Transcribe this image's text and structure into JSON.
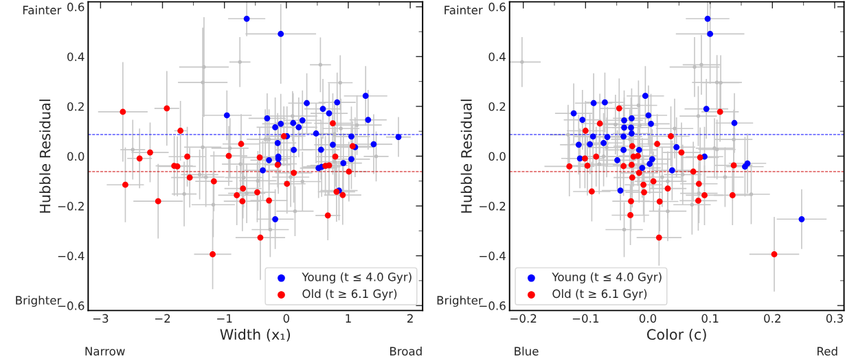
{
  "chart_data": [
    {
      "type": "scatter",
      "xlabel": "Width (x₁)",
      "ylabel": "Hubble Residual",
      "xlim": [
        -3.2,
        2.2
      ],
      "xticks": [
        {
          "value": -3,
          "label": "−3"
        },
        {
          "value": -2,
          "label": "−2"
        },
        {
          "value": -1,
          "label": "−1"
        },
        0,
        1,
        2
      ],
      "ylim": [
        -0.62,
        0.62
      ],
      "yticks": [
        {
          "value": -0.6,
          "label": "−0.6"
        },
        {
          "value": -0.4,
          "label": "−0.4"
        },
        {
          "value": -0.2,
          "label": "−0.2"
        },
        {
          "value": 0,
          "label": "0.0"
        },
        0.2,
        0.4,
        0.6
      ],
      "legend": "bottom right",
      "grid": false,
      "marker": "circle",
      "annotations": [
        "Fainter",
        "Brighter",
        "Narrow",
        "Broad"
      ],
      "ref_lines": [
        {
          "axis": "y",
          "value": 0.087,
          "label": null,
          "color": "#0000ff",
          "line_style": "dashed"
        },
        {
          "axis": "y",
          "value": -0.062,
          "label": null,
          "color": "#cc0000",
          "line_style": "dashed"
        }
      ],
      "series": [
        {
          "color": "#bebebe",
          "x": [
            -1.33,
            -1.35,
            -0.75,
            0.55,
            0.87,
            0.1,
            1.14,
            0.88,
            -2.48,
            -1.35,
            -0.91,
            -0.34,
            -0.28,
            1.45,
            0.78,
            -1.4,
            -1.3,
            -1.65,
            -1.18,
            -0.74,
            -0.69,
            -0.64,
            -0.46,
            0.07,
            0.26,
            0.14,
            -0.26,
            0.78
          ],
          "values": [
            0.358,
            0.296,
            0.378,
            0.367,
            0.295,
            0.161,
            0.125,
            0.111,
            0.026,
            0.036,
            0.032,
            0.068,
            0.068,
            -0.001,
            0.088,
            -0.074,
            -0.084,
            -0.152,
            -0.195,
            -0.032,
            -0.086,
            -0.149,
            -0.099,
            -0.084,
            -0.102,
            -0.221,
            -0.295,
            -0.022
          ],
          "xerrors": [
            0.4,
            0.4,
            0.17,
            0.17,
            0.2,
            0.4,
            0.4,
            0.3,
            0.2,
            0.3,
            0.3,
            0.3,
            0.3,
            0.2,
            0.3,
            0.3,
            0.3,
            0.2,
            0.35,
            0.3,
            0.3,
            0.3,
            0.3,
            0.3,
            0.3,
            0.3,
            0.3,
            0.3
          ],
          "errors": [
            0.2,
            0.22,
            0.1,
            0.11,
            0.11,
            0.1,
            0.12,
            0.12,
            0.12,
            0.12,
            0.12,
            0.12,
            0.12,
            0.1,
            0.12,
            0.1,
            0.12,
            0.13,
            0.13,
            0.12,
            0.12,
            0.12,
            0.12,
            0.12,
            0.12,
            0.1,
            0.11,
            0.12
          ]
        },
        {
          "name": "Young (t ≤ 4.0 Gyr)",
          "color": "#0000ff",
          "x": [
            -0.64,
            -0.09,
            -0.96,
            -0.31,
            -0.09,
            -0.18,
            0.11,
            0.2,
            0.26,
            0.33,
            0.59,
            0.69,
            0.82,
            1.28,
            1.32,
            1.81,
            0.48,
            0.01,
            -0.14,
            0.12,
            0.56,
            0.75,
            1.05,
            1.11,
            1.41,
            -0.13,
            -0.13,
            -0.28,
            1.05,
            0.92,
            -0.13,
            -0.38,
            0.52,
            0.57,
            0.85,
            -0.18
          ],
          "values": [
            0.552,
            0.491,
            0.164,
            0.152,
            0.13,
            0.116,
            0.133,
            0.116,
            0.144,
            0.213,
            0.19,
            0.172,
            0.216,
            0.242,
            0.146,
            0.077,
            0.091,
            0.08,
            0.053,
            0.025,
            0.026,
            0.046,
            0.079,
            0.036,
            0.048,
            -0.002,
            -0.01,
            -0.016,
            -0.012,
            -0.028,
            -0.031,
            -0.057,
            -0.048,
            -0.043,
            -0.138,
            -0.253
          ],
          "xerrors": [
            0.3,
            0.57,
            0.4,
            0.3,
            0.3,
            0.3,
            0.3,
            0.3,
            0.3,
            0.3,
            0.3,
            0.3,
            0.3,
            0.35,
            0.3,
            0.2,
            0.3,
            0.3,
            0.3,
            0.3,
            0.3,
            0.3,
            0.3,
            0.3,
            0.3,
            0.3,
            0.2,
            0.3,
            0.3,
            0.3,
            0.3,
            0.3,
            0.3,
            0.3,
            0.3,
            0.3
          ],
          "errors": [
            0.07,
            [
              0.291,
              0.611
            ],
            0.1,
            0.1,
            0.12,
            0.12,
            0.12,
            0.12,
            0.12,
            0.12,
            0.12,
            0.12,
            0.12,
            0.12,
            0.12,
            0.08,
            0.12,
            0.12,
            0.12,
            0.12,
            0.12,
            0.12,
            0.12,
            0.12,
            0.12,
            0.12,
            0.12,
            0.12,
            0.12,
            0.12,
            0.12,
            0.12,
            0.12,
            0.12,
            0.12,
            0.12
          ]
        },
        {
          "name": "Old (t ≥ 6.1 Gyr)",
          "color": "#ff0000",
          "x": [
            -2.64,
            -1.93,
            -1.71,
            -2.2,
            -2.37,
            -1.6,
            -1.81,
            -1.76,
            -0.93,
            -0.73,
            -0.43,
            -0.04,
            -0.14,
            0.75,
            0.79,
            1.07,
            0.63,
            0.69,
            -1.56,
            -2.6,
            -2.07,
            -1.17,
            -1.19,
            -0.8,
            -0.7,
            -0.71,
            -0.47,
            -0.28,
            -0.42,
            0.12,
            0.01,
            0.67,
            0.81,
            0.91,
            1.01
          ],
          "values": [
            0.178,
            0.192,
            0.102,
            0.015,
            -0.009,
            -0.002,
            -0.039,
            -0.041,
            0.001,
            0.049,
            -0.005,
            0.08,
            -0.035,
            0.132,
            -0.002,
            0.04,
            -0.039,
            -0.037,
            -0.086,
            -0.115,
            -0.181,
            -0.101,
            -0.394,
            -0.157,
            -0.13,
            -0.181,
            -0.145,
            -0.178,
            -0.327,
            -0.067,
            -0.111,
            -0.238,
            -0.143,
            -0.156,
            -0.062
          ],
          "xerrors": [
            0.4,
            0.2,
            0.1,
            0.3,
            0.2,
            0.3,
            0.3,
            0.3,
            0.3,
            0.3,
            0.3,
            0.3,
            0.22,
            0.3,
            0.3,
            0.3,
            0.3,
            0.3,
            0.3,
            0.3,
            0.4,
            0.3,
            0.3,
            0.3,
            0.3,
            0.3,
            0.3,
            0.3,
            0.4,
            0.3,
            0.3,
            0.2,
            0.3,
            0.3,
            0.3
          ],
          "errors": [
            0.2,
            0.15,
            0.12,
            0.12,
            0.12,
            0.12,
            0.12,
            0.12,
            0.12,
            0.12,
            0.12,
            0.12,
            0.09,
            0.12,
            0.12,
            0.1,
            0.12,
            0.12,
            0.12,
            0.15,
            0.15,
            0.12,
            0.14,
            0.12,
            0.12,
            0.12,
            0.12,
            0.12,
            0.17,
            0.12,
            0.12,
            0.1,
            0.12,
            0.12,
            0.12
          ]
        }
      ]
    },
    {
      "type": "scatter",
      "xlabel": "Color (c)",
      "ylabel": "Hubble Residual",
      "xlim": [
        -0.222,
        0.315
      ],
      "xticks": [
        {
          "value": -0.2,
          "label": "−0.2"
        },
        {
          "value": -0.1,
          "label": "−0.1"
        },
        {
          "value": 0,
          "label": "0.0"
        },
        0.1,
        0.2,
        0.3
      ],
      "ylim": [
        -0.62,
        0.62
      ],
      "yticks": [
        {
          "value": -0.6,
          "label": "−0.6"
        },
        {
          "value": -0.4,
          "label": "−0.4"
        },
        {
          "value": -0.2,
          "label": "−0.2"
        },
        {
          "value": 0,
          "label": "0.0"
        },
        0.2,
        0.4,
        0.6
      ],
      "legend": "bottom left",
      "grid": false,
      "marker": "circle",
      "annotations": [
        "Fainter",
        "Brighter",
        "Blue",
        "Red"
      ],
      "ref_lines": [
        {
          "axis": "y",
          "value": 0.087,
          "label": null,
          "color": "#0000ff",
          "line_style": "dashed"
        },
        {
          "axis": "y",
          "value": -0.062,
          "label": null,
          "color": "#cc0000",
          "line_style": "dashed"
        }
      ],
      "series": [
        {
          "color": "#bebebe",
          "x": [
            -0.202,
            0.075,
            0.086,
            0.111,
            0.117,
            -0.015,
            0.081,
            0.043,
            -0.128,
            -0.052,
            -0.013,
            0.138,
            0.107,
            0.111,
            -0.066,
            -0.029,
            -0.071,
            -0.078,
            0.023,
            0.056,
            0.124,
            0.032,
            0.082,
            0.166,
            0.071,
            0.032,
            -0.038
          ],
          "values": [
            0.378,
            0.358,
            0.367,
            0.296,
            0.295,
            0.204,
            0.161,
            0.111,
            0.086,
            0.127,
            0.124,
            0.067,
            0.032,
            0.027,
            0.035,
            0.068,
            -0.001,
            -0.032,
            -0.084,
            -0.074,
            -0.084,
            -0.101,
            -0.149,
            -0.153,
            -0.195,
            -0.221,
            -0.295
          ],
          "xerrors": [
            0.03,
            0.04,
            0.03,
            0.04,
            0.03,
            0.03,
            0.03,
            0.03,
            0.03,
            0.03,
            0.03,
            0.03,
            0.03,
            0.03,
            0.03,
            0.03,
            0.03,
            0.03,
            0.03,
            0.03,
            0.03,
            0.03,
            0.03,
            0.03,
            0.03,
            0.03,
            0.03
          ],
          "errors": [
            0.1,
            0.12,
            0.12,
            0.11,
            0.11,
            0.1,
            0.12,
            0.12,
            0.12,
            0.12,
            0.12,
            0.12,
            0.12,
            0.12,
            0.12,
            0.12,
            0.12,
            0.12,
            0.12,
            0.12,
            0.12,
            0.12,
            0.12,
            0.12,
            0.12,
            0.12,
            0.11
          ]
        },
        {
          "name": "Young (t ≤ 4.0 Gyr)",
          "color": "#0000ff",
          "x": [
            0.096,
            0.1,
            -0.004,
            -0.087,
            -0.069,
            -0.119,
            -0.105,
            0.001,
            0.005,
            -0.038,
            -0.026,
            -0.038,
            -0.027,
            -0.026,
            -0.039,
            -0.088,
            -0.065,
            -0.111,
            -0.093,
            -0.071,
            0.094,
            0.139,
            -0.014,
            -0.039,
            0.046,
            0.091,
            -0.109,
            -0.049,
            0.007,
            0.003,
            -0.009,
            0.156,
            0.16,
            -0.044,
            0.247,
            0.039
          ],
          "values": [
            0.552,
            0.491,
            0.242,
            0.213,
            0.216,
            0.172,
            0.146,
            0.164,
            0.13,
            0.144,
            0.152,
            0.115,
            0.115,
            0.091,
            0.079,
            0.079,
            0.077,
            0.046,
            0.048,
            0.053,
            0.19,
            0.133,
            0.025,
            0.025,
            0.036,
            -0.002,
            -0.009,
            -0.016,
            -0.012,
            -0.031,
            -0.047,
            -0.042,
            -0.029,
            -0.138,
            -0.253,
            -0.057
          ],
          "xerrors": [
            0.035,
            0.055,
            0.03,
            0.03,
            0.03,
            0.03,
            0.03,
            0.03,
            0.03,
            0.03,
            0.03,
            0.03,
            0.03,
            0.03,
            0.03,
            0.03,
            0.03,
            0.03,
            0.03,
            0.03,
            0.035,
            0.03,
            0.03,
            0.03,
            0.03,
            0.03,
            0.03,
            0.03,
            0.03,
            0.03,
            0.03,
            0.03,
            0.03,
            0.03,
            0.04,
            0.03
          ],
          "errors": [
            0.07,
            [
              0.291,
              0.611
            ],
            0.12,
            0.12,
            0.12,
            0.12,
            0.12,
            0.12,
            0.12,
            0.12,
            0.12,
            0.12,
            0.12,
            0.12,
            0.12,
            0.12,
            0.12,
            0.12,
            0.12,
            0.12,
            0.12,
            0.12,
            0.12,
            0.12,
            0.12,
            0.12,
            0.12,
            0.12,
            0.12,
            0.12,
            0.12,
            0.12,
            0.12,
            0.12,
            0.12,
            0.12
          ]
        },
        {
          "name": "Old (t ≥ 6.1 Gyr)",
          "color": "#ff0000",
          "x": [
            -0.046,
            0.116,
            -0.077,
            -0.1,
            0.037,
            0.015,
            -0.025,
            0.054,
            -0.083,
            -0.101,
            -0.023,
            -0.016,
            0.084,
            0.138,
            -0.126,
            -0.097,
            -0.039,
            -0.026,
            -0.014,
            -0.025,
            -0.007,
            0.009,
            -0.006,
            0.032,
            -0.09,
            -0.027,
            0.019,
            -0.028,
            0.073,
            0.082,
            0.091,
            0.081,
            0.136,
            0.018,
            0.203
          ],
          "values": [
            0.192,
            0.178,
            0.131,
            0.102,
            0.08,
            0.049,
            0.04,
            0.015,
            -0.002,
            -0.009,
            -0.002,
            0.001,
            -0.005,
            -0.037,
            -0.041,
            -0.038,
            -0.04,
            -0.035,
            -0.067,
            -0.086,
            -0.115,
            -0.101,
            -0.145,
            -0.13,
            -0.142,
            -0.181,
            -0.182,
            -0.237,
            -0.062,
            -0.111,
            -0.157,
            -0.179,
            -0.157,
            -0.327,
            -0.394
          ],
          "xerrors": [
            0.03,
            0.03,
            0.03,
            0.03,
            0.03,
            0.03,
            0.03,
            0.03,
            0.03,
            0.03,
            0.03,
            0.03,
            0.03,
            0.03,
            0.04,
            0.03,
            0.03,
            0.03,
            0.03,
            0.03,
            0.03,
            0.03,
            0.03,
            0.03,
            0.03,
            0.03,
            0.03,
            0.03,
            0.03,
            0.03,
            0.03,
            0.03,
            0.03,
            0.036,
            0.04
          ],
          "errors": [
            0.12,
            0.12,
            0.12,
            0.12,
            0.12,
            0.12,
            0.12,
            0.12,
            0.12,
            0.12,
            0.12,
            0.12,
            0.12,
            0.12,
            0.12,
            0.12,
            0.12,
            0.12,
            0.12,
            0.12,
            0.12,
            0.12,
            0.12,
            0.12,
            0.12,
            0.12,
            0.12,
            0.12,
            0.12,
            0.12,
            0.12,
            0.12,
            0.12,
            [
              -0.44,
              -0.21
            ],
            0.15
          ]
        }
      ]
    }
  ]
}
